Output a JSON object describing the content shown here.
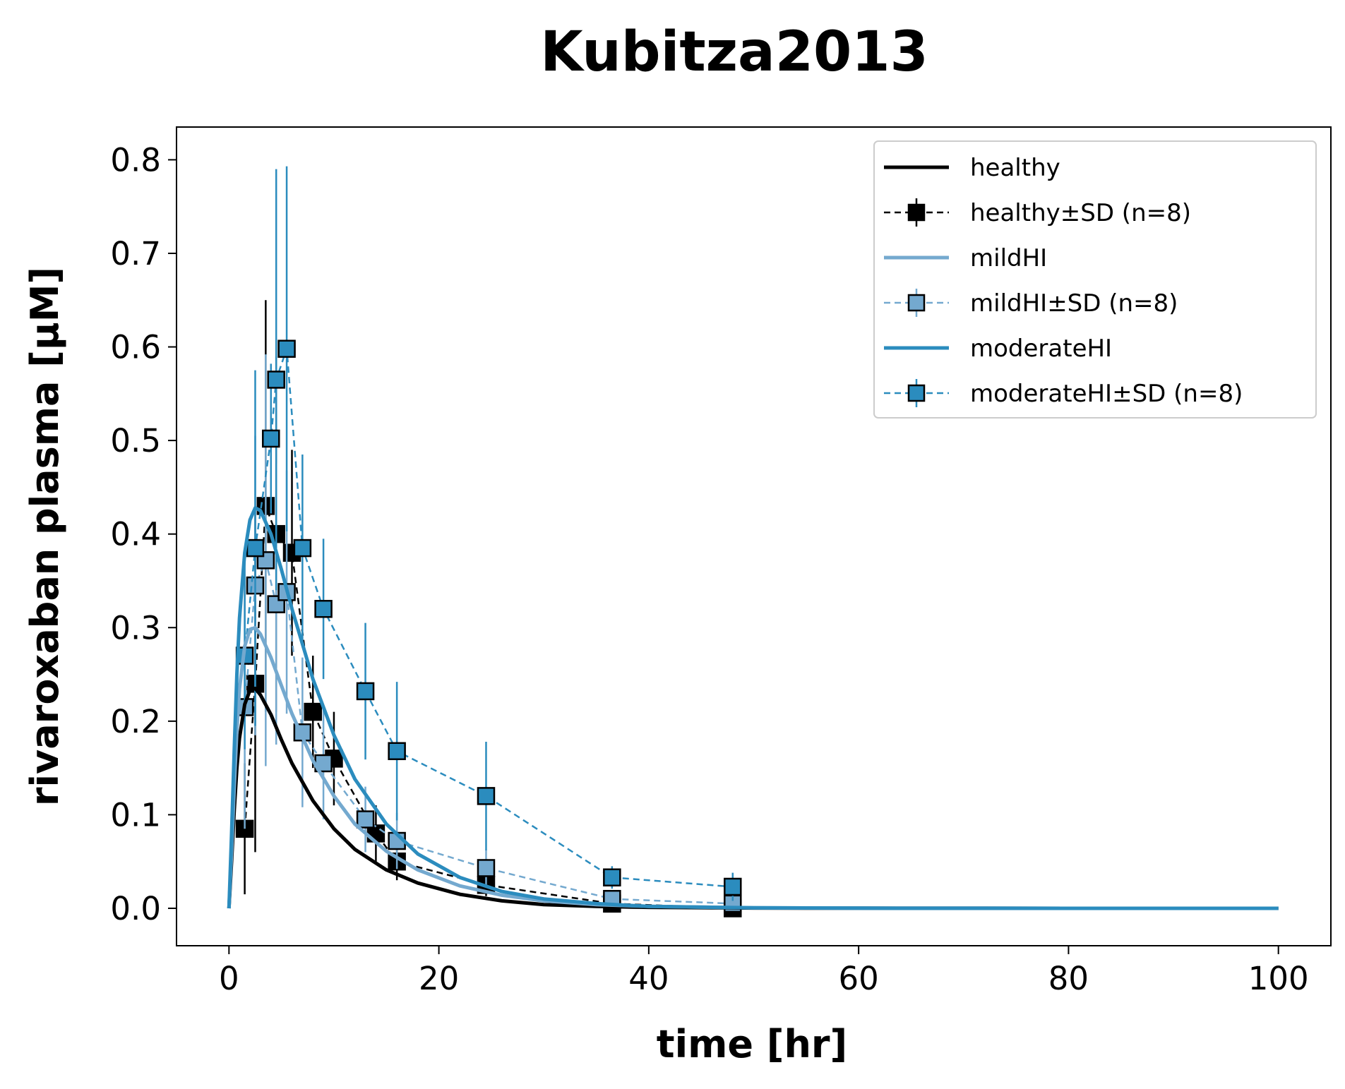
{
  "chart_data": {
    "type": "line",
    "title": "Kubitza2013",
    "xlabel": "time [hr]",
    "ylabel": "rivaroxaban plasma [µM]",
    "xlim": [
      -5,
      105
    ],
    "ylim": [
      -0.04,
      0.835
    ],
    "xticks": [
      0,
      20,
      40,
      60,
      80,
      100
    ],
    "yticks": [
      0.0,
      0.1,
      0.2,
      0.3,
      0.4,
      0.5,
      0.6,
      0.7,
      0.8
    ],
    "grid": false,
    "legend_position": "top-right",
    "colors": {
      "healthy": "#000000",
      "mildHI": "#74a9cf",
      "moderateHI": "#2b8cbe"
    },
    "model_series": [
      {
        "name": "healthy",
        "color": "#000000",
        "x_range": [
          0,
          100
        ],
        "x": [
          0,
          0.25,
          0.5,
          0.75,
          1,
          1.5,
          2,
          2.5,
          3,
          4,
          5,
          6,
          8,
          10,
          12,
          15,
          18,
          22,
          26,
          30,
          35,
          40,
          50,
          60,
          80,
          100
        ],
        "y": [
          0,
          0.05,
          0.105,
          0.15,
          0.182,
          0.218,
          0.233,
          0.235,
          0.228,
          0.207,
          0.18,
          0.155,
          0.115,
          0.085,
          0.063,
          0.041,
          0.027,
          0.015,
          0.008,
          0.004,
          0.002,
          0.001,
          0.0003,
          0.0001,
          0,
          0
        ]
      },
      {
        "name": "mildHI",
        "color": "#74a9cf",
        "x_range": [
          0,
          100
        ],
        "x": [
          0,
          0.25,
          0.5,
          0.75,
          1,
          1.5,
          2,
          2.5,
          3,
          4,
          5,
          6,
          8,
          10,
          12,
          15,
          18,
          22,
          26,
          30,
          35,
          40,
          50,
          60,
          80,
          100
        ],
        "y": [
          0,
          0.06,
          0.13,
          0.19,
          0.235,
          0.28,
          0.298,
          0.3,
          0.293,
          0.268,
          0.238,
          0.208,
          0.158,
          0.12,
          0.09,
          0.061,
          0.041,
          0.024,
          0.014,
          0.008,
          0.004,
          0.002,
          0.0005,
          0.0001,
          0,
          0
        ]
      },
      {
        "name": "moderateHI",
        "color": "#2b8cbe",
        "x_range": [
          0,
          100
        ],
        "x": [
          0,
          0.25,
          0.5,
          0.75,
          1,
          1.5,
          2,
          2.5,
          3,
          4,
          5,
          6,
          8,
          10,
          12,
          15,
          18,
          22,
          26,
          30,
          35,
          40,
          50,
          60,
          80,
          100
        ],
        "y": [
          0,
          0.08,
          0.17,
          0.25,
          0.31,
          0.38,
          0.415,
          0.428,
          0.425,
          0.4,
          0.362,
          0.32,
          0.245,
          0.185,
          0.138,
          0.09,
          0.058,
          0.033,
          0.018,
          0.01,
          0.005,
          0.002,
          0.0005,
          0.0001,
          0,
          0
        ]
      }
    ],
    "data_series": [
      {
        "name": "healthy±SD (n=8)",
        "color": "#000000",
        "marker_face": "#000000",
        "x": [
          1.5,
          2.5,
          3.5,
          4.5,
          6,
          8,
          10,
          14,
          16,
          24.5,
          36.5,
          48
        ],
        "y": [
          0.085,
          0.24,
          0.43,
          0.4,
          0.38,
          0.21,
          0.16,
          0.08,
          0.05,
          0.025,
          0.005,
          0.0
        ],
        "sd": [
          0.07,
          0.18,
          0.22,
          0.19,
          0.11,
          0.06,
          0.05,
          0.03,
          0.02,
          0.012,
          0.004,
          0.003
        ]
      },
      {
        "name": "mildHI±SD (n=8)",
        "color": "#74a9cf",
        "marker_face": "#74a9cf",
        "x": [
          1.5,
          2.5,
          3.5,
          4.5,
          5.5,
          7,
          9,
          13,
          16,
          24.5,
          36.5,
          48
        ],
        "y": [
          0.215,
          0.345,
          0.372,
          0.325,
          0.338,
          0.188,
          0.155,
          0.095,
          0.072,
          0.043,
          0.01,
          0.005
        ],
        "sd": [
          0.13,
          0.16,
          0.22,
          0.15,
          0.13,
          0.08,
          0.06,
          0.035,
          0.03,
          0.02,
          0.006,
          0.004
        ]
      },
      {
        "name": "moderateHI±SD (n=8)",
        "color": "#2b8cbe",
        "marker_face": "#2b8cbe",
        "x": [
          1.5,
          2.5,
          4,
          4.5,
          5.5,
          7,
          9,
          13,
          16,
          24.5,
          36.5,
          48
        ],
        "y": [
          0.27,
          0.385,
          0.502,
          0.565,
          0.598,
          0.385,
          0.32,
          0.232,
          0.168,
          0.12,
          0.033,
          0.023
        ],
        "sd": [
          0.1,
          0.19,
          0.08,
          0.225,
          0.195,
          0.1,
          0.075,
          0.073,
          0.074,
          0.058,
          0.012,
          0.015
        ]
      }
    ],
    "legend": [
      {
        "label": "healthy",
        "kind": "line",
        "color": "#000000",
        "face": ""
      },
      {
        "label": "healthy±SD (n=8)",
        "kind": "marker",
        "color": "#000000",
        "face": "#000000"
      },
      {
        "label": "mildHI",
        "kind": "line",
        "color": "#74a9cf",
        "face": ""
      },
      {
        "label": "mildHI±SD (n=8)",
        "kind": "marker",
        "color": "#74a9cf",
        "face": "#74a9cf"
      },
      {
        "label": "moderateHI",
        "kind": "line",
        "color": "#2b8cbe",
        "face": ""
      },
      {
        "label": "moderateHI±SD (n=8)",
        "kind": "marker",
        "color": "#2b8cbe",
        "face": "#2b8cbe"
      }
    ]
  }
}
